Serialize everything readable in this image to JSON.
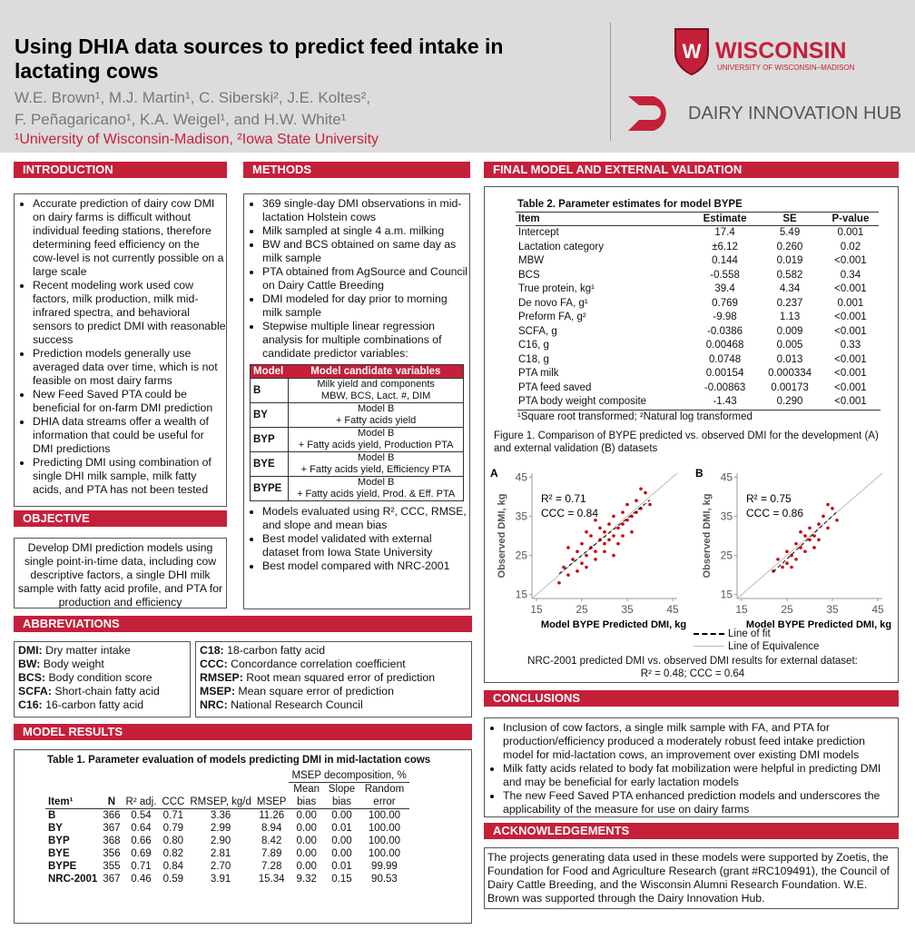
{
  "header": {
    "title": "Using DHIA data sources to predict feed intake in lactating cows",
    "authors": [
      "W.E. Brown¹, M.J. Martin¹, C. Siberski², J.E. Koltes²,",
      "F. Peñagaricano¹, K.A. Weigel¹, and H.W. White¹"
    ],
    "affiliation": "¹University of Wisconsin-Madison, ²Iowa State University",
    "logo_name": "WISCONSIN",
    "logo_sub": "UNIVERSITY OF WISCONSIN–MADISON",
    "hub": "DAIRY INNOVATION HUB"
  },
  "introduction": {
    "heading": "INTRODUCTION",
    "bullets": [
      "Accurate prediction of dairy cow DMI on dairy farms is difficult without individual feeding stations, therefore determining feed efficiency on the cow-level is not currently possible on a large scale",
      "Recent modeling work used cow factors, milk production, milk mid-infrared spectra, and behavioral sensors to predict DMI with reasonable success",
      "Prediction models generally use averaged data over time, which is not feasible on most dairy farms",
      "New Feed Saved PTA could be beneficial for on-farm DMI prediction",
      "DHIA data streams offer a wealth of information that could be useful for DMI predictions",
      "Predicting DMI using combination of single DHI milk sample, milk fatty acids, and PTA has not been tested"
    ]
  },
  "objective": {
    "heading": "OBJECTIVE",
    "text": "Develop DMI prediction models using single point-in-time data, including cow descriptive factors, a single DHI milk sample with fatty acid profile, and PTA for production and efficiency"
  },
  "abbreviations": {
    "heading": "ABBREVIATIONS",
    "left": [
      [
        "DMI:",
        "Dry matter intake"
      ],
      [
        "BW:",
        "Body weight"
      ],
      [
        "BCS:",
        "Body condition score"
      ],
      [
        "SCFA:",
        "Short-chain fatty acid"
      ],
      [
        "C16:",
        "16-carbon fatty acid"
      ]
    ],
    "right": [
      [
        "C18:",
        "18-carbon fatty acid"
      ],
      [
        "CCC:",
        "Concordance correlation coefficient"
      ],
      [
        "RMSEP:",
        "Root mean squared error of prediction"
      ],
      [
        "MSEP:",
        "Mean square error of prediction"
      ],
      [
        "NRC:",
        "National Research Council"
      ]
    ]
  },
  "methods": {
    "heading": "METHODS",
    "bullets": [
      "369 single-day DMI observations in mid-lactation Holstein cows",
      "Milk sampled at single 4 a.m. milking",
      "BW and BCS obtained on same day as milk sample",
      "PTA obtained from AgSource and Council on Dairy Cattle Breeding",
      "DMI modeled for day prior to morning milk sample",
      "Stepwise multiple linear regression analysis for multiple combinations of candidate predictor variables:"
    ],
    "table": {
      "header": [
        "Model",
        "Model candidate variables"
      ],
      "rows": [
        [
          "B",
          [
            "Milk yield and components",
            "MBW, BCS, Lact. #, DIM"
          ]
        ],
        [
          "BY",
          [
            "Model B",
            "+ Fatty acids yield"
          ]
        ],
        [
          "BYP",
          [
            "Model B",
            "+ Fatty acids yield, Production PTA"
          ]
        ],
        [
          "BYE",
          [
            "Model B",
            "+ Fatty acids yield, Efficiency PTA"
          ]
        ],
        [
          "BYPE",
          [
            "Model B",
            "+ Fatty acids yield, Prod. & Eff. PTA"
          ]
        ]
      ]
    },
    "bullets2": [
      "Models evaluated using R², CCC, RMSE, and slope and mean bias",
      "Best model validated with external dataset from Iowa State University",
      "Best model compared with NRC-2001"
    ]
  },
  "model_results": {
    "heading": "MODEL RESULTS",
    "table": {
      "caption": "Table 1. Parameter evaluation of models predicting DMI in mid-lactation cows",
      "group_header": "MSEP decomposition, %",
      "header_top": [
        "Mean",
        "Slope",
        "Random"
      ],
      "header": [
        "Item¹",
        "N",
        "R² adj.",
        "CCC",
        "RMSEP, kg/d",
        "MSEP",
        "bias",
        "bias",
        "error"
      ],
      "rows": [
        [
          "B",
          "366",
          "0.54",
          "0.71",
          "3.36",
          "11.26",
          "0.00",
          "0.00",
          "100.00"
        ],
        [
          "BY",
          "367",
          "0.64",
          "0.79",
          "2.99",
          "8.94",
          "0.00",
          "0.01",
          "100.00"
        ],
        [
          "BYP",
          "368",
          "0.66",
          "0.80",
          "2.90",
          "8.42",
          "0.00",
          "0.00",
          "100.00"
        ],
        [
          "BYE",
          "356",
          "0.69",
          "0.82",
          "2.81",
          "7.89",
          "0.00",
          "0.00",
          "100.00"
        ],
        [
          "BYPE",
          "355",
          "0.71",
          "0.84",
          "2.70",
          "7.28",
          "0.00",
          "0.01",
          "99.99"
        ],
        [
          "NRC-2001",
          "367",
          "0.46",
          "0.59",
          "3.91",
          "15.34",
          "9.32",
          "0.15",
          "90.53"
        ]
      ]
    }
  },
  "final_model": {
    "heading": "FINAL MODEL AND EXTERNAL VALIDATION",
    "table": {
      "caption": "Table 2. Parameter estimates for model BYPE",
      "header": [
        "Item",
        "Estimate",
        "SE",
        "P-value"
      ],
      "rows": [
        [
          "Intercept",
          "17.4",
          "5.49",
          "0.001"
        ],
        [
          "Lactation category",
          "±6.12",
          "0.260",
          "0.02"
        ],
        [
          "MBW",
          "0.144",
          "0.019",
          "<0.001"
        ],
        [
          "BCS",
          "-0.558",
          "0.582",
          "0.34"
        ],
        [
          "True protein, kg¹",
          "39.4",
          "4.34",
          "<0.001"
        ],
        [
          "De novo FA, g¹",
          "0.769",
          "0.237",
          "0.001"
        ],
        [
          "Preform FA, g²",
          "-9.98",
          "1.13",
          "<0.001"
        ],
        [
          "SCFA, g",
          "-0.0386",
          "0.009",
          "<0.001"
        ],
        [
          "C16, g",
          "0.00468",
          "0.005",
          "0.33"
        ],
        [
          "C18, g",
          "0.0748",
          "0.013",
          "<0.001"
        ],
        [
          "PTA milk",
          "0.00154",
          "0.000334",
          "<0.001"
        ],
        [
          "PTA feed saved",
          "-0.00863",
          "0.00173",
          "<0.001"
        ],
        [
          "PTA body weight composite",
          "-1.43",
          "0.290",
          "<0.001"
        ]
      ],
      "footnote": "¹Square root transformed; ²Natural log transformed"
    },
    "figure_caption": "Figure 1. Comparison of BYPE predicted vs. observed DMI for the development (A) and external validation (B) datasets",
    "legend": [
      "Line of fit",
      "Line of Equivalence"
    ],
    "note": "NRC-2001 predicted DMI vs. observed DMI results for external dataset:",
    "note2": "R² = 0.48; CCC = 0.64"
  },
  "chart_data": [
    {
      "type": "scatter",
      "panel": "A",
      "xlabel": "Model BYPE Predicted DMI, kg",
      "ylabel": "Observed DMI, kg",
      "annotations": [
        "R² = 0.71",
        "CCC = 0.84"
      ],
      "color": "#cc0000",
      "xlim": [
        14,
        46
      ],
      "ylim": [
        14,
        46
      ],
      "xticks": [
        15,
        25,
        35,
        45
      ],
      "yticks": [
        15,
        25,
        35,
        45
      ],
      "x": [
        20,
        21,
        22,
        23,
        24,
        24,
        25,
        25,
        26,
        26,
        27,
        27,
        28,
        28,
        29,
        29,
        30,
        30,
        30,
        31,
        31,
        32,
        32,
        33,
        33,
        34,
        34,
        35,
        35,
        36,
        36,
        37,
        37,
        38,
        39,
        40,
        28,
        26,
        32,
        38,
        22,
        34
      ],
      "y": [
        18,
        22,
        20,
        24,
        21,
        26,
        23,
        28,
        25,
        22,
        27,
        30,
        26,
        24,
        29,
        32,
        28,
        31,
        26,
        33,
        29,
        30,
        35,
        32,
        28,
        36,
        33,
        34,
        38,
        35,
        31,
        39,
        36,
        37,
        41,
        38,
        34,
        31,
        25,
        42,
        27,
        30
      ]
    },
    {
      "type": "scatter",
      "panel": "B",
      "xlabel": "Model BYPE Predicted DMI, kg",
      "ylabel": "Observed DMI, kg",
      "annotations": [
        "R² = 0.75",
        "CCC = 0.86"
      ],
      "color": "#cc0000",
      "xlim": [
        14,
        46
      ],
      "ylim": [
        14,
        46
      ],
      "xticks": [
        15,
        25,
        35,
        45
      ],
      "yticks": [
        15,
        25,
        35,
        45
      ],
      "x": [
        22,
        23,
        24,
        25,
        25,
        26,
        27,
        27,
        28,
        29,
        29,
        30,
        30,
        31,
        32,
        32,
        33,
        34,
        35,
        36,
        28,
        26,
        31,
        34
      ],
      "y": [
        21,
        24,
        22,
        26,
        23,
        25,
        28,
        24,
        27,
        30,
        26,
        29,
        32,
        30,
        33,
        29,
        35,
        32,
        37,
        34,
        31,
        22,
        27,
        38
      ]
    }
  ],
  "conclusions": {
    "heading": "CONCLUSIONS",
    "bullets": [
      "Inclusion of cow factors, a single milk sample with FA, and PTA for production/efficiency produced a moderately robust feed intake prediction model for mid-lactation cows, an improvement over existing DMI models",
      "Milk fatty acids related to body fat mobilization were helpful in predicting DMI and may be beneficial for early lactation models",
      "The new Feed Saved PTA enhanced prediction models and underscores the applicability of the measure for use on dairy farms"
    ]
  },
  "acknowledgements": {
    "heading": "ACKNOWLEDGEMENTS",
    "text": "The projects generating data used in these models were supported by Zoetis, the Foundation for Food and Agriculture Research (grant #RC109491), the Council of Dairy Cattle Breeding, and the Wisconsin Alumni Research Foundation.  W.E. Brown was supported through the Dairy Innovation Hub."
  }
}
